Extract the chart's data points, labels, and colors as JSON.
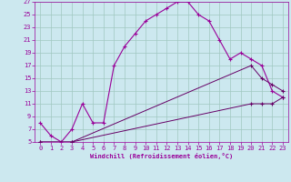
{
  "xlabel": "Windchill (Refroidissement éolien,°C)",
  "bg_color": "#cce8ef",
  "grid_color": "#a0c8c0",
  "line_color": "#990099",
  "line_color2": "#660066",
  "xlim": [
    -0.5,
    23.5
  ],
  "ylim": [
    5,
    27
  ],
  "xticks": [
    0,
    1,
    2,
    3,
    4,
    5,
    6,
    7,
    8,
    9,
    10,
    11,
    12,
    13,
    14,
    15,
    16,
    17,
    18,
    19,
    20,
    21,
    22,
    23
  ],
  "yticks": [
    5,
    7,
    9,
    11,
    13,
    15,
    17,
    19,
    21,
    23,
    25,
    27
  ],
  "series1_x": [
    0,
    1,
    2,
    3,
    4,
    5,
    6,
    7,
    8,
    9,
    10,
    11,
    12,
    13,
    14,
    15,
    16,
    17,
    18,
    19,
    20,
    21,
    22,
    23
  ],
  "series1_y": [
    8,
    6,
    5,
    7,
    11,
    8,
    8,
    17,
    20,
    22,
    24,
    25,
    26,
    27,
    27,
    25,
    24,
    21,
    18,
    19,
    18,
    17,
    13,
    12
  ],
  "series2_x": [
    0,
    3,
    20,
    21,
    22,
    23
  ],
  "series2_y": [
    5,
    5,
    17,
    15,
    14,
    13
  ],
  "series3_x": [
    0,
    3,
    20,
    21,
    22,
    23
  ],
  "series3_y": [
    5,
    5,
    11,
    11,
    11,
    12
  ],
  "font_size": 5,
  "xlabel_size": 5,
  "lw1": 0.8,
  "lw2": 0.7,
  "marker_size": 2
}
